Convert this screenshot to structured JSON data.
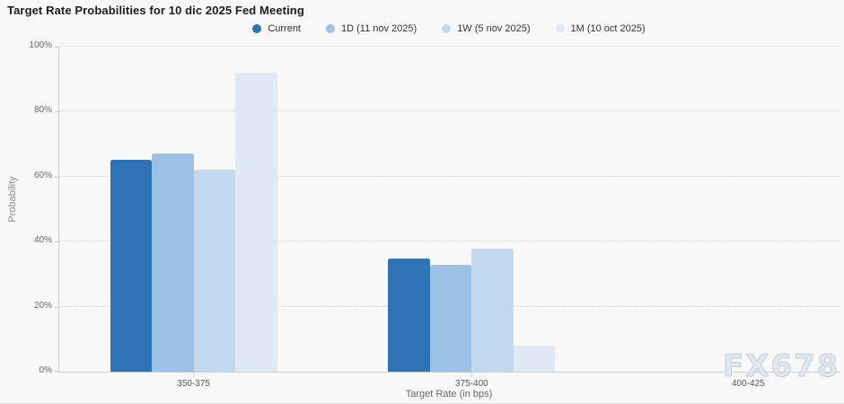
{
  "watermark": {
    "text": "FX678"
  },
  "chart_data": {
    "type": "bar",
    "title": "Target Rate Probabilities for 10 dic 2025 Fed Meeting",
    "xlabel": "Target Rate (in bps)",
    "ylabel": "Probability",
    "ylim": [
      0,
      100
    ],
    "yticks": [
      "0%",
      "20%",
      "40%",
      "60%",
      "80%",
      "100%"
    ],
    "grid": "horizontal-dotted",
    "legend_position": "top",
    "categories": [
      "350-375",
      "375-400",
      "400-425"
    ],
    "series": [
      {
        "name": "Current",
        "color": "#2e74b5",
        "values": [
          65.3,
          34.7,
          0
        ]
      },
      {
        "name": "1D (11 nov 2025)",
        "color": "#9bc2e5",
        "values": [
          67.0,
          33.0,
          0
        ]
      },
      {
        "name": "1W (5 nov 2025)",
        "color": "#c2d8ee",
        "values": [
          62.1,
          37.9,
          0
        ]
      },
      {
        "name": "1M (10 oct 2025)",
        "color": "#dfe9f6",
        "values": [
          92.0,
          8.0,
          0
        ]
      }
    ]
  }
}
